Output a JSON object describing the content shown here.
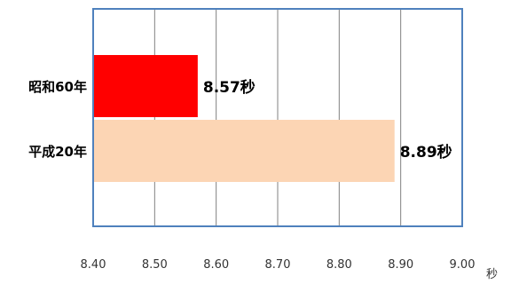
{
  "chart_data": {
    "type": "bar",
    "orientation": "horizontal",
    "categories": [
      "昭和60年",
      "平成20年"
    ],
    "values": [
      8.57,
      8.89
    ],
    "data_labels": [
      "8.57秒",
      "8.89秒"
    ],
    "colors": [
      "#ff0000",
      "#fcd5b4"
    ],
    "xlim": [
      8.4,
      9.0
    ],
    "x_ticks": [
      "8.40",
      "8.50",
      "8.60",
      "8.70",
      "8.80",
      "8.90",
      "9.00"
    ],
    "x_tick_values": [
      8.4,
      8.5,
      8.6,
      8.7,
      8.8,
      8.9,
      9.0
    ],
    "x_unit": "秒",
    "grid": true,
    "plot_border_color": "#4f81bd",
    "grid_color": "#808080"
  }
}
